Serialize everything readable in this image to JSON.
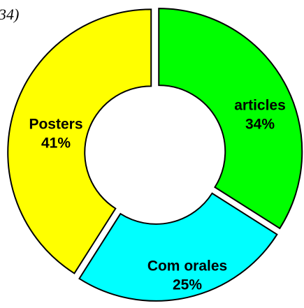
{
  "chart_data": {
    "type": "donut",
    "title": "34)",
    "categories": [
      "articles",
      "Com orales",
      "Posters"
    ],
    "values": [
      34,
      25,
      41
    ],
    "value_labels": [
      "34%",
      "25%",
      "41%"
    ],
    "colors": [
      "#00ff00",
      "#00ffff",
      "#ffff00"
    ]
  }
}
